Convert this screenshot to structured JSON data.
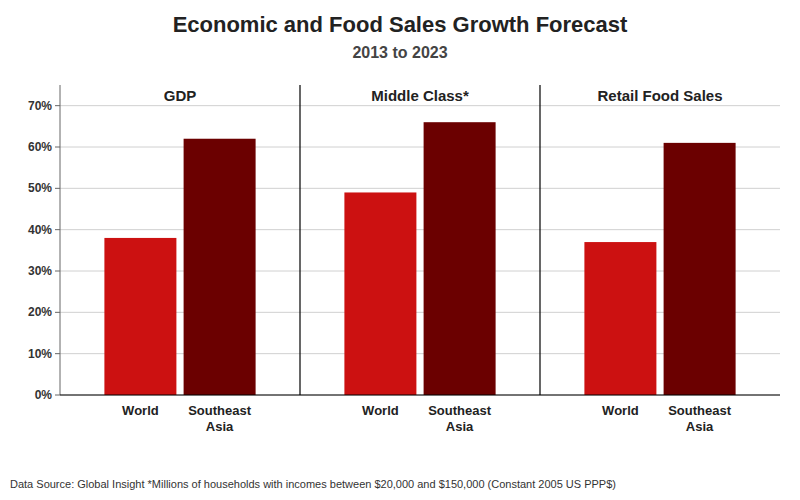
{
  "chart_data": {
    "type": "bar",
    "title": "Economic and Food Sales Growth Forecast",
    "subtitle": "2013 to 2023",
    "categories": [
      "GDP",
      "Middle Class*",
      "Retail Food Sales"
    ],
    "series": [
      {
        "name": "World",
        "color": "#CC1111",
        "values": [
          38,
          49,
          37
        ]
      },
      {
        "name": "Southeast\nAsia",
        "color": "#6B0000",
        "values": [
          62,
          66,
          61
        ]
      }
    ],
    "ylim": [
      0,
      75
    ],
    "yticks": [
      {
        "value": 0,
        "label": "0%"
      },
      {
        "value": 10,
        "label": "10%"
      },
      {
        "value": 20,
        "label": "20%"
      },
      {
        "value": 30,
        "label": "30%"
      },
      {
        "value": 40,
        "label": "40%"
      },
      {
        "value": 50,
        "label": "50%"
      },
      {
        "value": 60,
        "label": "60%"
      },
      {
        "value": 70,
        "label": "70%"
      }
    ],
    "grid": true,
    "annotations": [
      "Data Source: Global Insight  *Millions of households  with incomes between $20,000 and $150,000 (Constant 2005 US PPP$)"
    ]
  }
}
